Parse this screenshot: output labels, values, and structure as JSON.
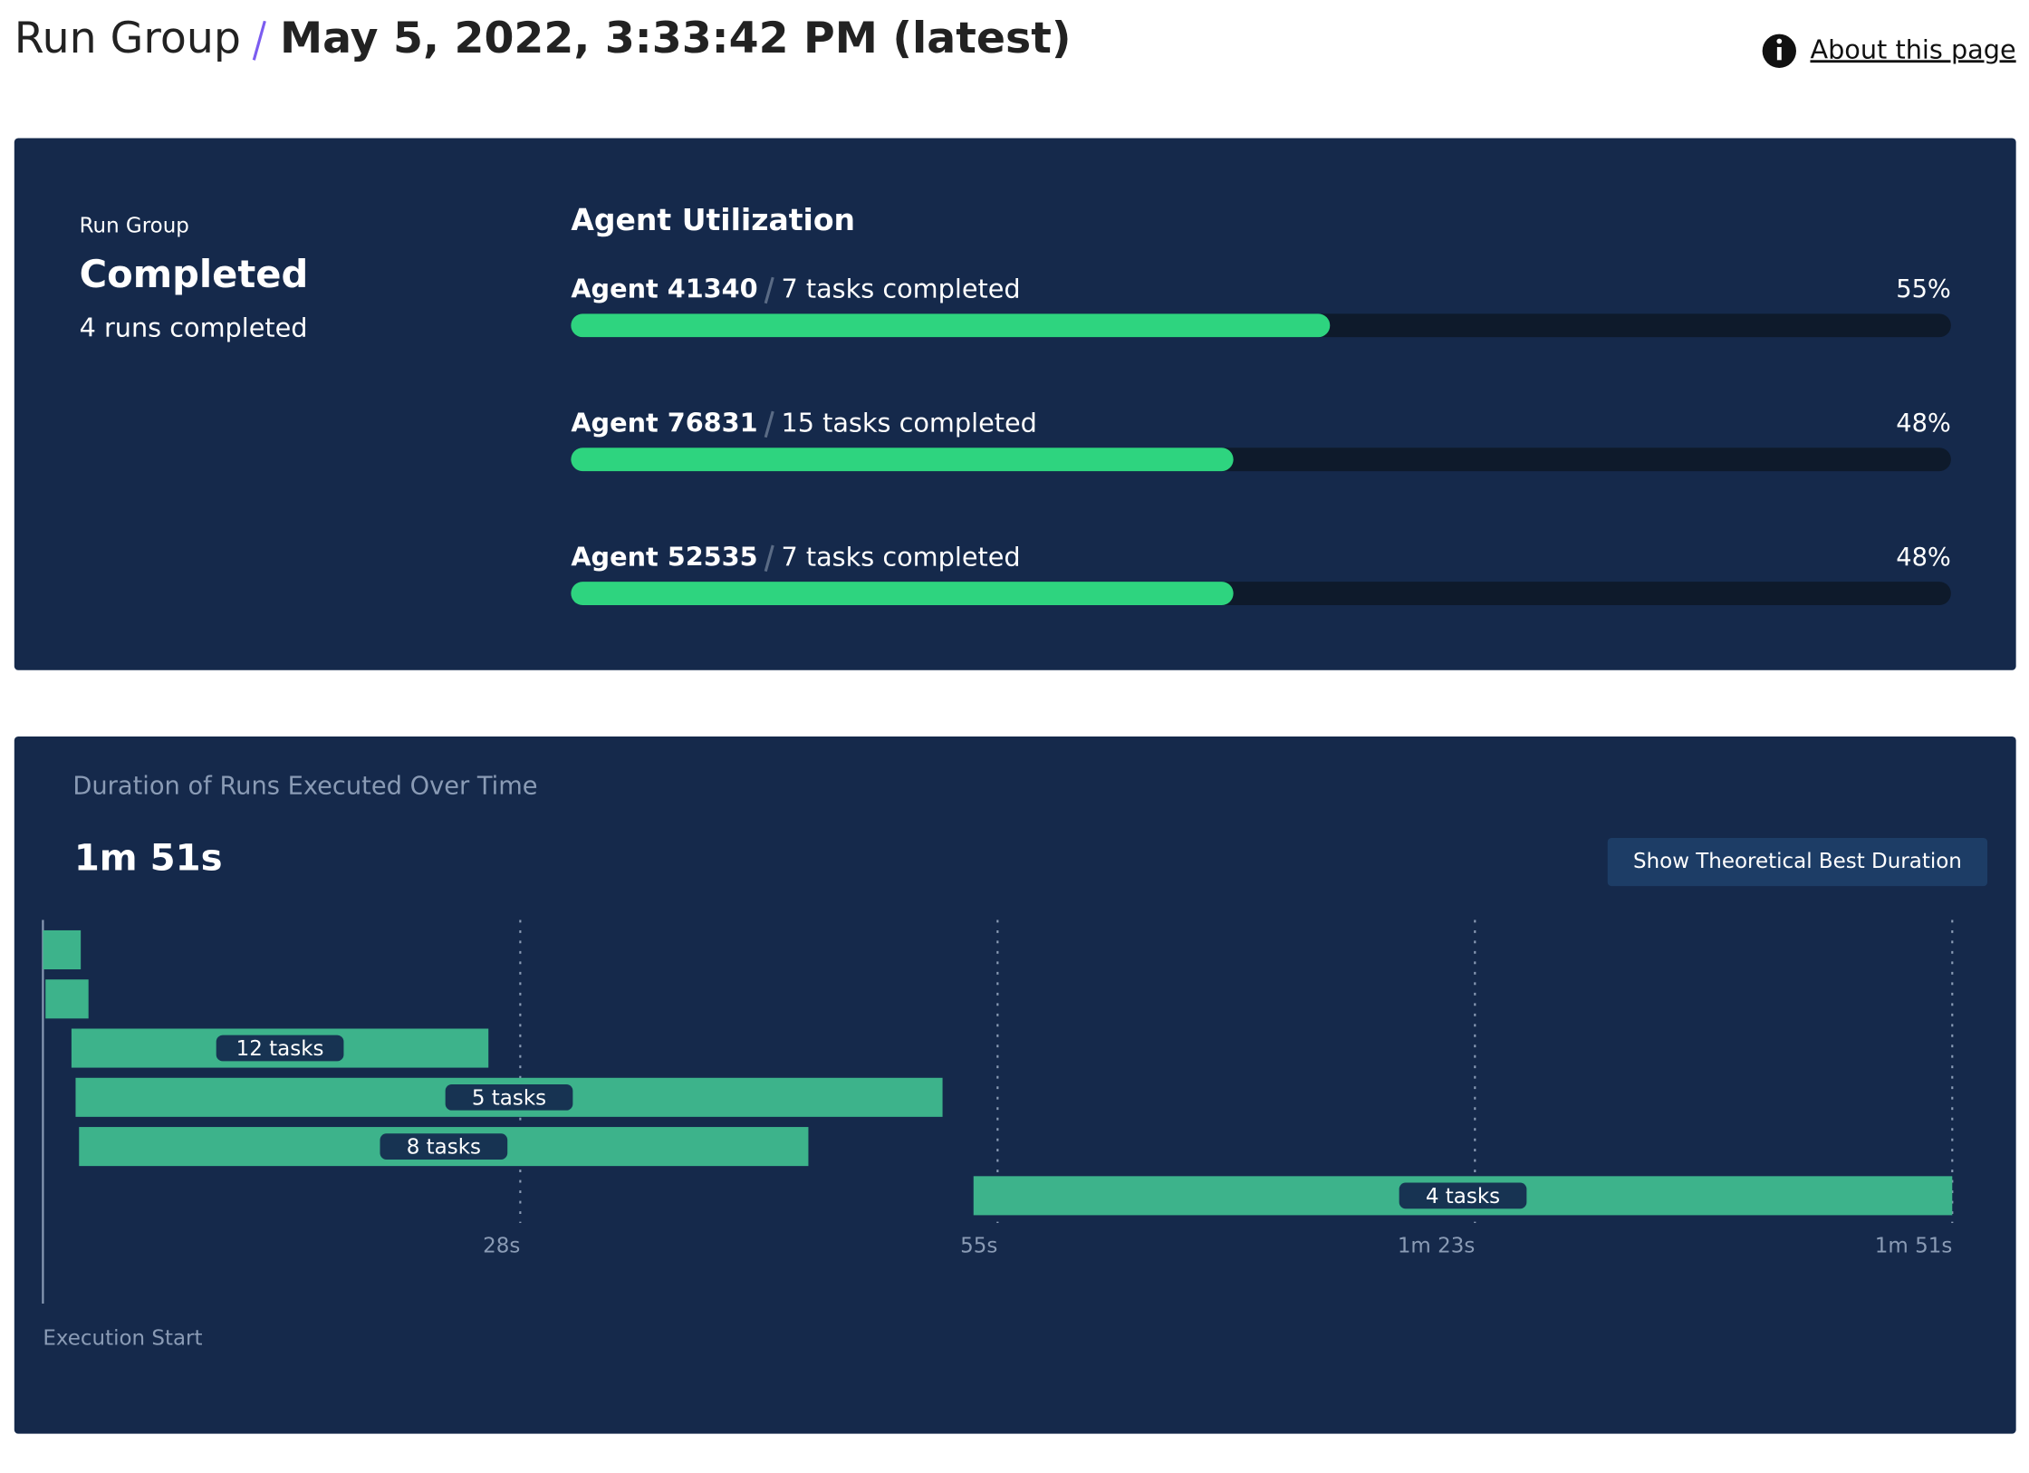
{
  "header": {
    "title": "Run Group",
    "subtitle": "May 5, 2022, 3:33:42 PM (latest)",
    "link": "About this page"
  },
  "summary": {
    "label": "Run Group",
    "status": "Completed",
    "detail": "4 runs completed"
  },
  "utilization": {
    "title": "Agent Utilization",
    "color": "#2ed47f",
    "agents": [
      {
        "name": "Agent 41340",
        "tasks": "7 tasks completed",
        "value": 55,
        "value_label": "55%"
      },
      {
        "name": "Agent 76831",
        "tasks": "15 tasks completed",
        "value": 48,
        "value_label": "48%"
      },
      {
        "name": "Agent 52535",
        "tasks": "7 tasks completed",
        "value": 48,
        "value_label": "48%"
      }
    ]
  },
  "chart_data": {
    "type": "gantt",
    "title": "Duration of Runs Executed Over Time",
    "total": "1m 51s",
    "button": "Show Theoretical Best Duration",
    "start": [
      0,
      0.15,
      1.66,
      1.9,
      2.1,
      54.1
    ],
    "end": [
      2.2,
      2.65,
      25.9,
      52.3,
      44.5,
      111
    ],
    "labels": [
      null,
      null,
      "12 tasks",
      "5 tasks",
      "8 tasks",
      "4 tasks"
    ],
    "color": "#3db38b",
    "xlim": [
      0,
      111
    ],
    "xticks": [
      {
        "value": 27.75,
        "label": "28s"
      },
      {
        "value": 55.5,
        "label": "55s"
      },
      {
        "value": 83.25,
        "label": "1m 23s"
      },
      {
        "value": 111,
        "label": "1m 51s"
      }
    ],
    "grid": true,
    "annotation": "Execution Start"
  }
}
